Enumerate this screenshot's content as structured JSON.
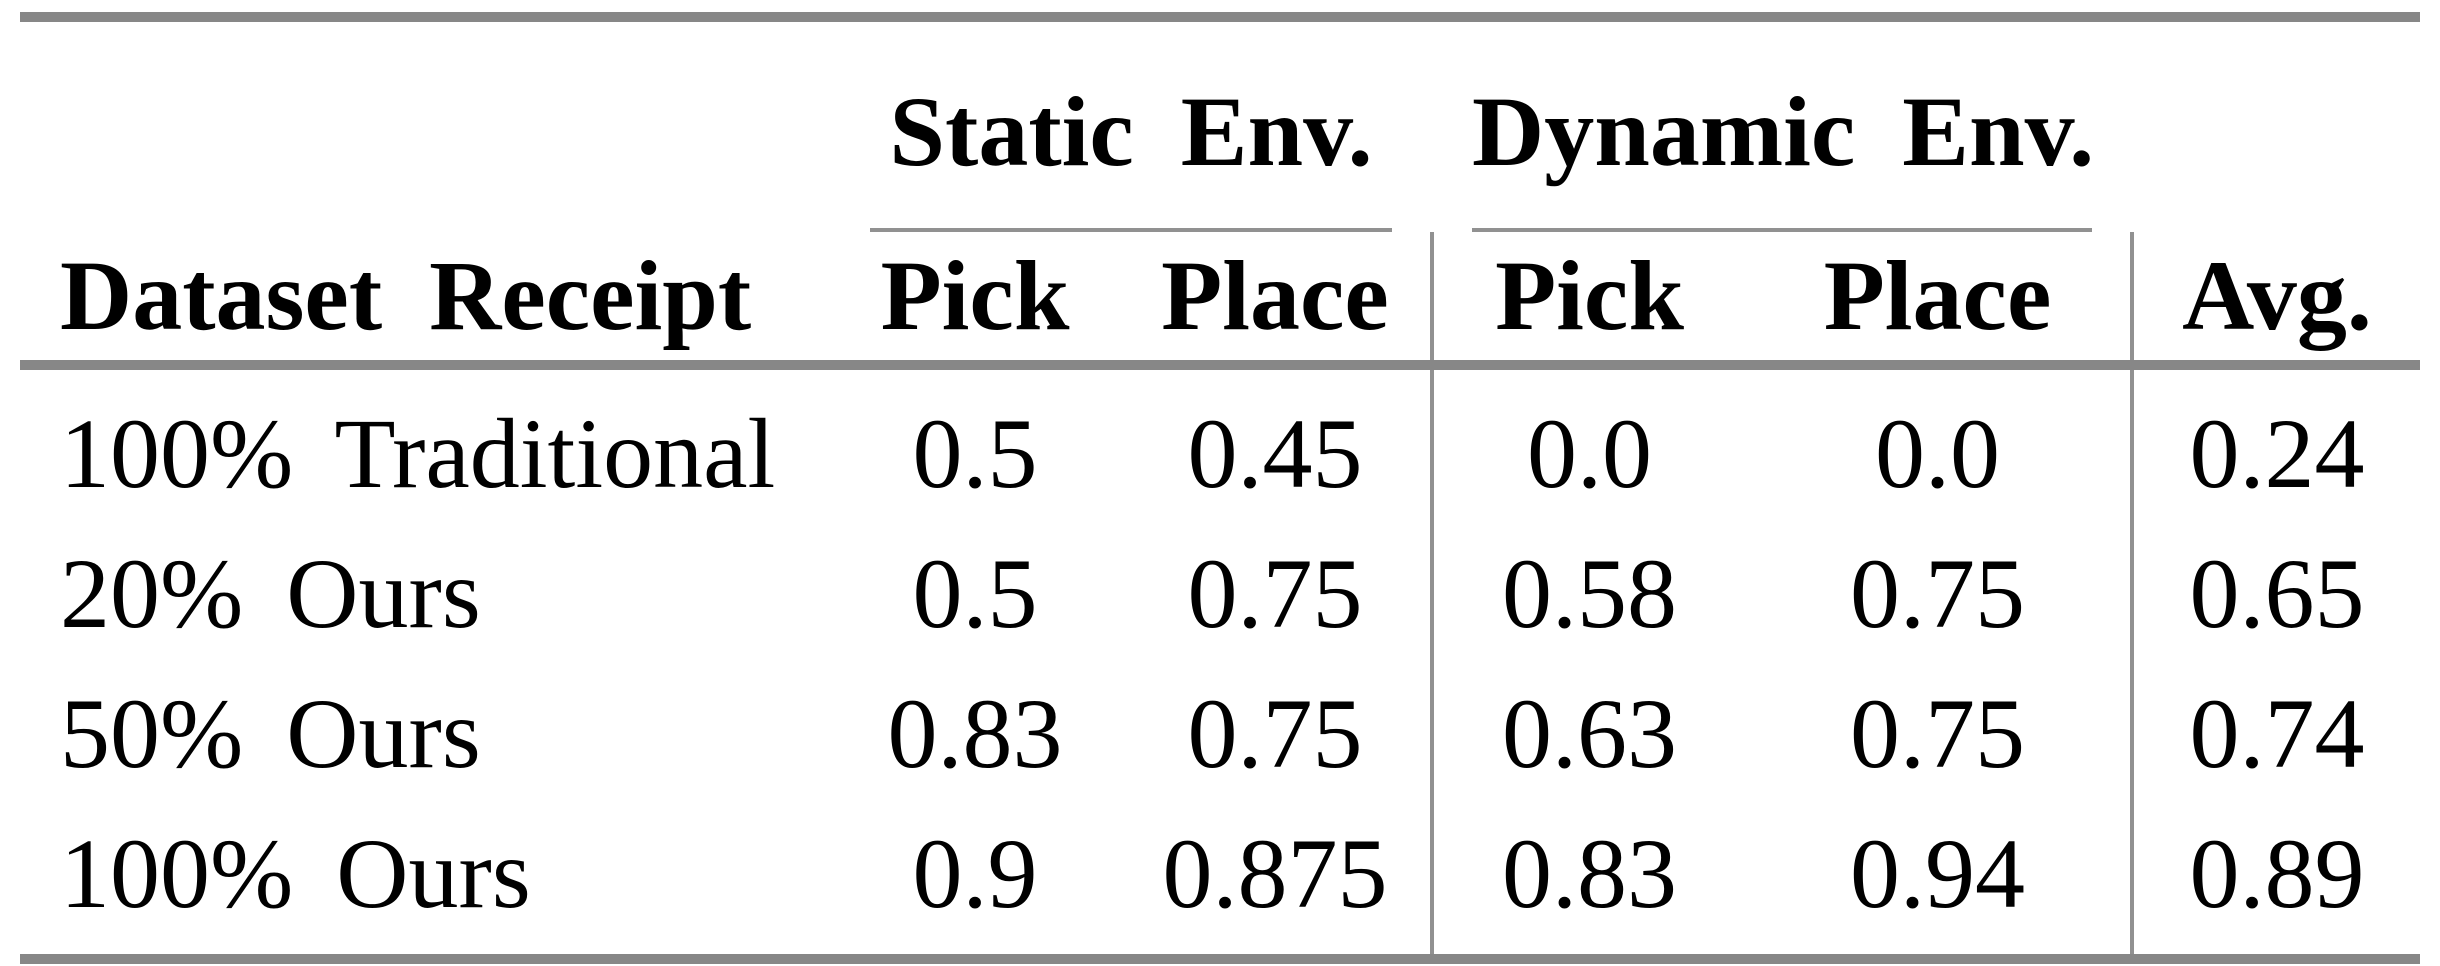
{
  "colors": {
    "background": "#ffffff",
    "text": "#000000",
    "rule_thick": "#878787",
    "rule_thin": "#919191"
  },
  "table": {
    "groups": [
      {
        "label": "Static Env."
      },
      {
        "label": "Dynamic Env."
      }
    ],
    "header": {
      "row_label": "Dataset Receipt",
      "static_pick": "Pick",
      "static_place": "Place",
      "dynamic_pick": "Pick",
      "dynamic_place": "Place",
      "avg": "Avg."
    },
    "rows": [
      {
        "label": "100% Traditional",
        "values": [
          "0.5",
          "0.45",
          "0.0",
          "0.0",
          "0.24"
        ]
      },
      {
        "label": "20% Ours",
        "values": [
          "0.5",
          "0.75",
          "0.58",
          "0.75",
          "0.65"
        ]
      },
      {
        "label": "50% Ours",
        "values": [
          "0.83",
          "0.75",
          "0.63",
          "0.75",
          "0.74"
        ]
      },
      {
        "label": "100% Ours",
        "values": [
          "0.9",
          "0.875",
          "0.83",
          "0.94",
          "0.89"
        ]
      }
    ]
  },
  "chart_data": {
    "type": "table",
    "title": "",
    "columns": [
      "Dataset Receipt",
      "Static Env. Pick",
      "Static Env. Place",
      "Dynamic Env. Pick",
      "Dynamic Env. Place",
      "Avg."
    ],
    "rows": [
      [
        "100% Traditional",
        0.5,
        0.45,
        0.0,
        0.0,
        0.24
      ],
      [
        "20% Ours",
        0.5,
        0.75,
        0.58,
        0.75,
        0.65
      ],
      [
        "50% Ours",
        0.83,
        0.75,
        0.63,
        0.75,
        0.74
      ],
      [
        "100% Ours",
        0.9,
        0.875,
        0.83,
        0.94,
        0.89
      ]
    ]
  }
}
